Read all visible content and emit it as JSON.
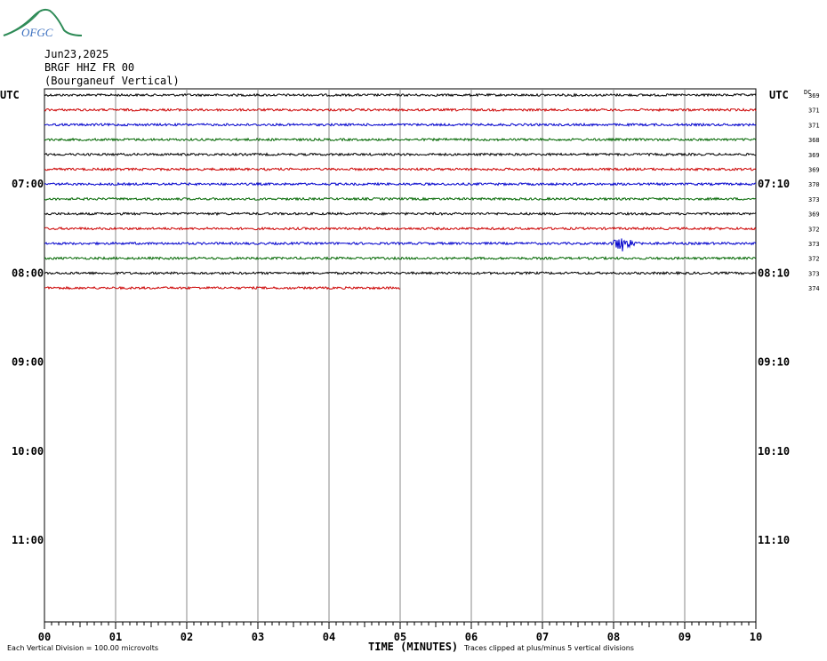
{
  "logo_text": "OFGC",
  "header": {
    "date": "Jun23,2025",
    "station": "BRGF HHZ FR 00",
    "location": "(Bourganeuf Vertical)"
  },
  "axis_labels": {
    "utc_left": "UTC",
    "utc_right": "UTC",
    "dc": "DC",
    "x_title": "TIME (MINUTES)"
  },
  "footer": {
    "scale_note": "Each Vertical Division = 100.00 microvolts",
    "clip_note": "Traces clipped at plus/minus 5 vertical divisions"
  },
  "chart_data": {
    "type": "line",
    "title": "",
    "xlabel": "TIME (MINUTES)",
    "x_ticks": [
      "00",
      "01",
      "02",
      "03",
      "04",
      "05",
      "06",
      "07",
      "08",
      "09",
      "10"
    ],
    "xlim": [
      0,
      10
    ],
    "grid": true,
    "left_hour_labels": [
      "07:00",
      "08:00",
      "09:00",
      "10:00",
      "11:00"
    ],
    "right_hour_labels": [
      "07:10",
      "08:10",
      "09:10",
      "10:10",
      "11:10"
    ],
    "trace_colors": [
      "#000000",
      "#cc0000",
      "#0000cc",
      "#006600"
    ],
    "dc_offsets": [
      "369",
      "371",
      "371",
      "368",
      "369",
      "369",
      "370",
      "373",
      "369",
      "372",
      "373",
      "372",
      "373",
      "374"
    ],
    "last_trace_end_minute": 5,
    "event": {
      "trace_index": 10,
      "minute": 8.1,
      "description": ""
    }
  }
}
